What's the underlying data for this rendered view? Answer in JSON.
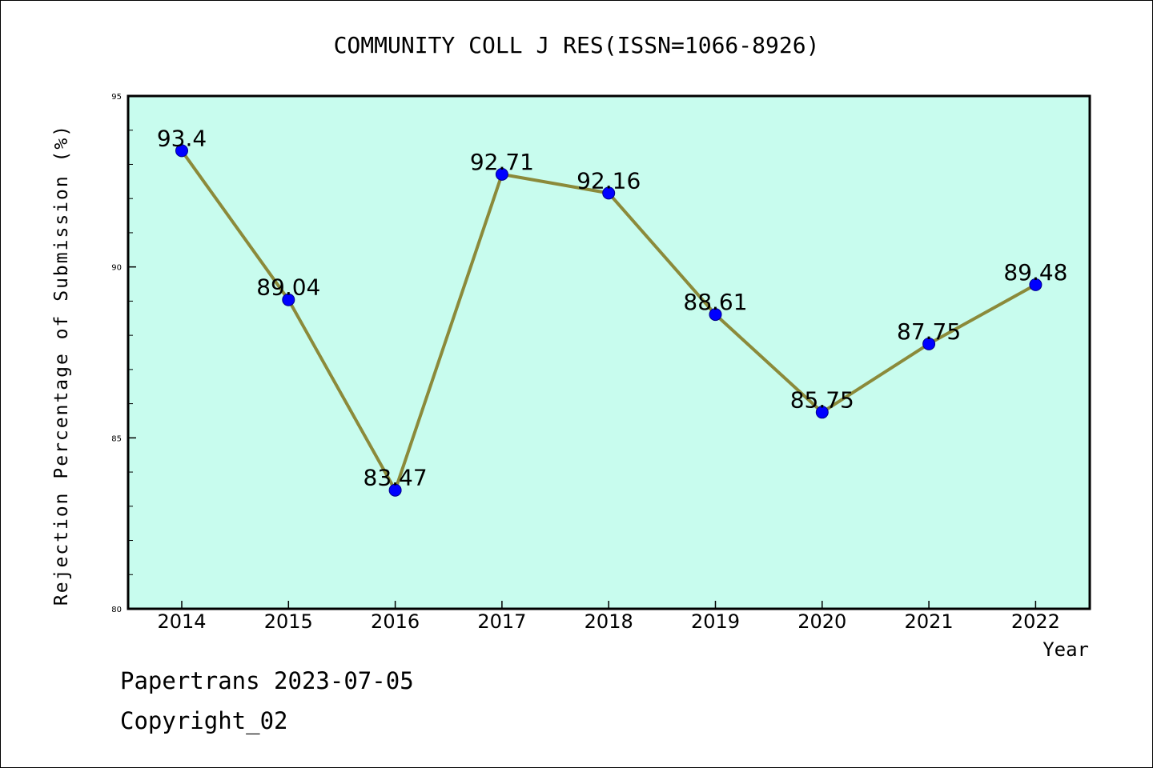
{
  "chart_data": {
    "type": "line",
    "title": "COMMUNITY COLL J RES(ISSN=1066-8926)",
    "xlabel": "Year",
    "ylabel": "Rejection Percentage of Submission (%)",
    "x": [
      "2014",
      "2015",
      "2016",
      "2017",
      "2018",
      "2019",
      "2020",
      "2021",
      "2022"
    ],
    "series": [
      {
        "values": [
          93.4,
          89.04,
          83.47,
          92.71,
          92.16,
          88.61,
          85.75,
          87.75,
          89.48
        ]
      }
    ],
    "data_labels": [
      "93.4",
      "89.04",
      "83.47",
      "92.71",
      "92.16",
      "88.61",
      "85.75",
      "87.75",
      "89.48"
    ],
    "ylim": [
      80,
      95
    ],
    "yticks": [
      80,
      85,
      90,
      95
    ],
    "ytick_labels": [
      "80",
      "85",
      "90",
      "95"
    ],
    "grid": false,
    "colors": {
      "plot_background": "#c8fcee",
      "line": "#8b8a3a",
      "marker": "#0000ff"
    }
  },
  "footer": {
    "line1": "Papertrans 2023-07-05",
    "line2": "Copyright_02"
  }
}
